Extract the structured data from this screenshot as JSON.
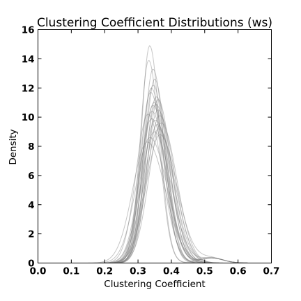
{
  "chart_data": {
    "type": "line",
    "title": "Clustering Coefficient Distributions (ws)",
    "xlabel": "Clustering Coefficient",
    "ylabel": "Density",
    "xlim": [
      0.0,
      0.7
    ],
    "ylim": [
      0,
      16
    ],
    "xticks": [
      "0.0",
      "0.1",
      "0.2",
      "0.3",
      "0.4",
      "0.5",
      "0.6",
      "0.7"
    ],
    "yticks": [
      "0",
      "2",
      "4",
      "6",
      "8",
      "10",
      "12",
      "14",
      "16"
    ],
    "grid": false,
    "legend": "none",
    "line_color": "#808080",
    "line_opacity": 0.45,
    "series": [
      {
        "peak_x": 0.335,
        "peak_density": 14.9,
        "width": 0.027
      },
      {
        "peak_x": 0.345,
        "peak_density": 13.3,
        "width": 0.03
      },
      {
        "peak_x": 0.35,
        "peak_density": 12.6,
        "width": 0.031
      },
      {
        "peak_x": 0.332,
        "peak_density": 13.9,
        "width": 0.028
      },
      {
        "peak_x": 0.34,
        "peak_density": 12.0,
        "width": 0.033
      },
      {
        "peak_x": 0.355,
        "peak_density": 11.4,
        "width": 0.035
      },
      {
        "peak_x": 0.348,
        "peak_density": 11.0,
        "width": 0.036
      },
      {
        "peak_x": 0.36,
        "peak_density": 10.5,
        "width": 0.038
      },
      {
        "peak_x": 0.345,
        "peak_density": 10.8,
        "width": 0.037
      },
      {
        "peak_x": 0.338,
        "peak_density": 11.7,
        "width": 0.034
      },
      {
        "peak_x": 0.365,
        "peak_density": 10.1,
        "width": 0.04
      },
      {
        "peak_x": 0.352,
        "peak_density": 9.8,
        "width": 0.041
      },
      {
        "peak_x": 0.342,
        "peak_density": 10.4,
        "width": 0.038
      },
      {
        "peak_x": 0.358,
        "peak_density": 9.5,
        "width": 0.042
      },
      {
        "peak_x": 0.33,
        "peak_density": 10.2,
        "width": 0.039
      },
      {
        "peak_x": 0.362,
        "peak_density": 9.2,
        "width": 0.043
      },
      {
        "peak_x": 0.349,
        "peak_density": 9.0,
        "width": 0.044
      },
      {
        "peak_x": 0.336,
        "peak_density": 8.6,
        "width": 0.046
      },
      {
        "peak_x": 0.37,
        "peak_density": 9.6,
        "width": 0.041
      },
      {
        "peak_x": 0.328,
        "peak_density": 8.3,
        "width": 0.048
      },
      {
        "peak_x": 0.354,
        "peak_density": 10.9,
        "width": 0.036
      },
      {
        "peak_x": 0.346,
        "peak_density": 12.2,
        "width": 0.032
      },
      {
        "peak_x": 0.36,
        "peak_density": 11.2,
        "width": 0.035
      },
      {
        "peak_x": 0.341,
        "peak_density": 9.9,
        "width": 0.04
      },
      {
        "peak_x": 0.366,
        "peak_density": 8.8,
        "width": 0.045
      }
    ]
  }
}
